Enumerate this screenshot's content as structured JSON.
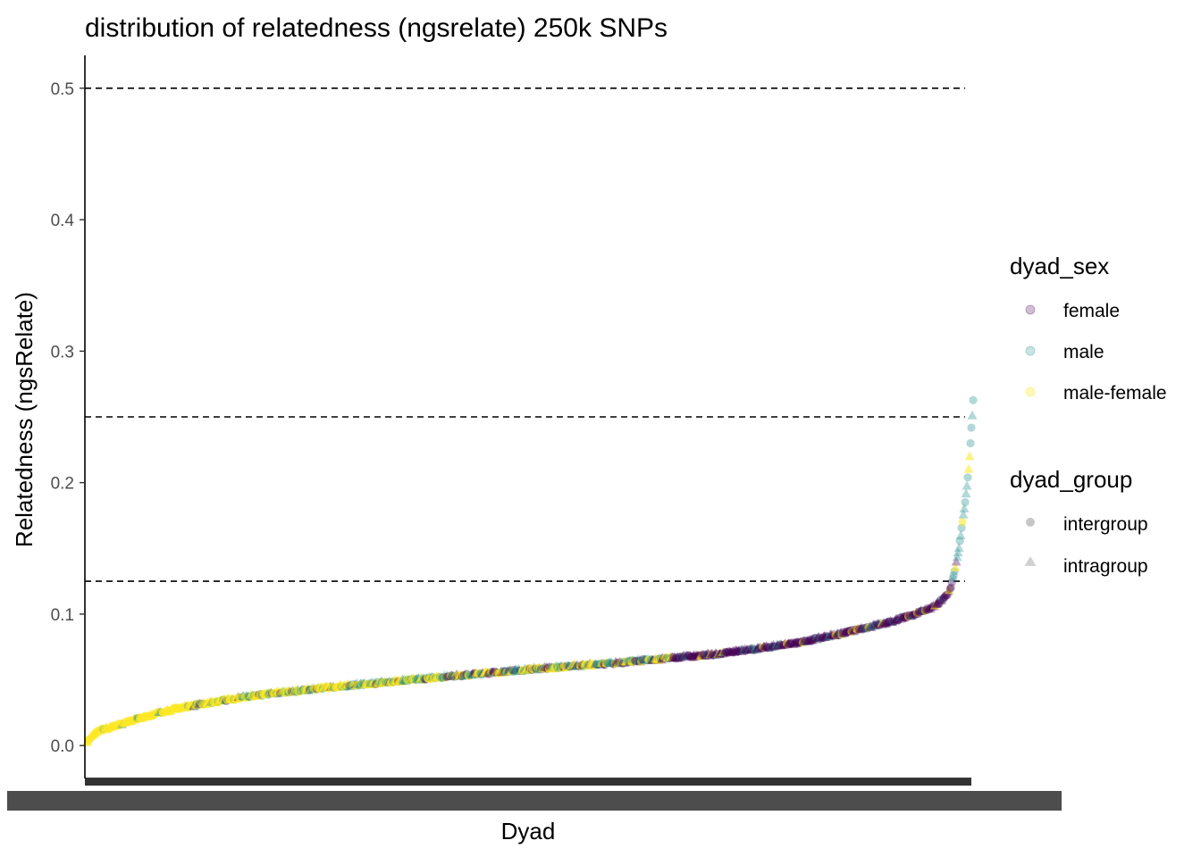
{
  "chart_data": {
    "type": "scatter",
    "title": "distribution of relatedness (ngsrelate) 250k SNPs",
    "xlabel": "Dyad",
    "ylabel": "Relatedness (ngsRelate)",
    "ylim": [
      -0.025,
      0.525
    ],
    "y_ticks": [
      "0.0",
      "0.1",
      "0.2",
      "0.3",
      "0.4",
      "0.5"
    ],
    "x_tick_labels": "overplotted dyad identifiers (illegible)",
    "hlines": [
      0.5,
      0.25,
      0.125
    ],
    "grid": false,
    "n_points": 1000,
    "curve": {
      "description": "dyads sorted by ascending relatedness",
      "x_fraction": [
        0.0,
        0.01,
        0.05,
        0.1,
        0.15,
        0.2,
        0.3,
        0.4,
        0.5,
        0.6,
        0.7,
        0.75,
        0.8,
        0.85,
        0.9,
        0.93,
        0.95,
        0.96,
        0.97,
        0.975,
        0.98,
        0.985,
        0.99,
        0.995,
        1.0
      ],
      "y": [
        0.003,
        0.01,
        0.019,
        0.028,
        0.034,
        0.039,
        0.046,
        0.052,
        0.058,
        0.063,
        0.069,
        0.073,
        0.078,
        0.085,
        0.093,
        0.099,
        0.104,
        0.108,
        0.114,
        0.121,
        0.135,
        0.155,
        0.18,
        0.21,
        0.262
      ]
    },
    "legend": {
      "placement": "right",
      "groups": [
        {
          "title": "dyad_sex",
          "entries": [
            {
              "label": "female",
              "color": "#440154"
            },
            {
              "label": "male",
              "color": "#21908c"
            },
            {
              "label": "male-female",
              "color": "#fde725"
            }
          ]
        },
        {
          "title": "dyad_group",
          "entries": [
            {
              "label": "intergroup",
              "shape": "circle"
            },
            {
              "label": "intragroup",
              "shape": "triangle"
            }
          ]
        }
      ]
    }
  }
}
